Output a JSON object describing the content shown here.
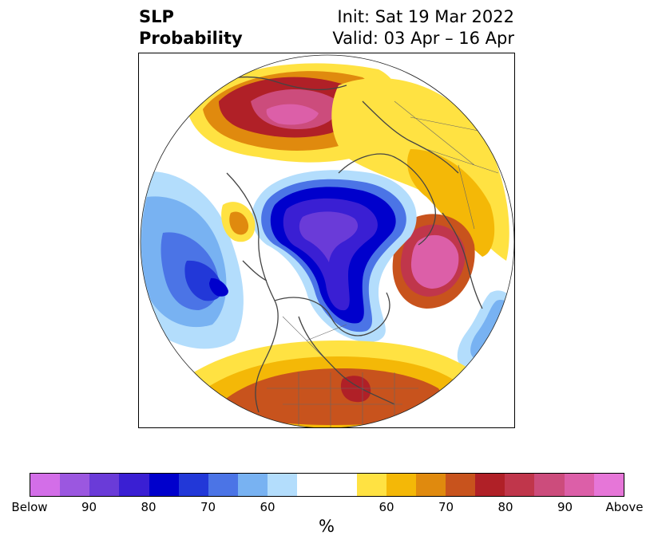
{
  "title": {
    "left_line1": "SLP",
    "left_line2": "Probability",
    "right_line1": "Init: Sat 19 Mar 2022",
    "right_line2": "Valid: 03 Apr – 16 Apr"
  },
  "colorbar": {
    "unit": "%",
    "colors": [
      "#d36ee8",
      "#9b57e0",
      "#6a3bd8",
      "#3a1fd3",
      "#0000cc",
      "#2238d8",
      "#4b74e6",
      "#78b2f2",
      "#b3ddfc",
      "#ffffff",
      "#ffffff",
      "#ffe242",
      "#f4b807",
      "#e08a0e",
      "#c8531d",
      "#b02027",
      "#c0364b",
      "#cc4c7c",
      "#dc5fa8",
      "#e676d8"
    ],
    "tick_labels": [
      "Below",
      "90",
      "80",
      "70",
      "60",
      "",
      "60",
      "70",
      "80",
      "90",
      "Above"
    ]
  },
  "map": {
    "projection": "north-polar-stereographic",
    "icons": [
      "coastline-icon",
      "border-icon"
    ]
  }
}
